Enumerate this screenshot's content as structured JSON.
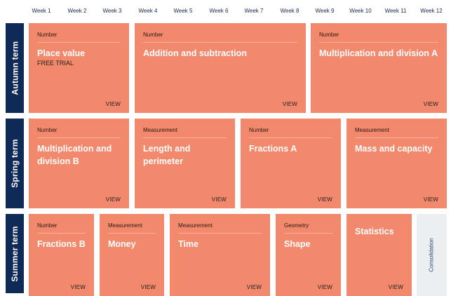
{
  "weeks": [
    "Week 1",
    "Week 2",
    "Week 3",
    "Week 4",
    "Week 5",
    "Week 6",
    "Week 7",
    "Week 8",
    "Week 9",
    "Week 10",
    "Week 11",
    "Week 12"
  ],
  "terms": {
    "autumn": "Autumn term",
    "spring": "Spring term",
    "summer": "Summer term"
  },
  "autumn": [
    {
      "category": "Number",
      "title": "Place value",
      "sub": "FREE TRIAL",
      "view": "VIEW"
    },
    {
      "category": "Number",
      "title": "Addition and subtraction",
      "view": "VIEW"
    },
    {
      "category": "Number",
      "title": "Multiplication and division A",
      "view": "VIEW"
    }
  ],
  "spring": [
    {
      "category": "Number",
      "title": "Multiplication and division B",
      "view": "VIEW"
    },
    {
      "category": "Measurement",
      "title": "Length and perimeter",
      "view": "VIEW"
    },
    {
      "category": "Number",
      "title": "Fractions A",
      "view": "VIEW"
    },
    {
      "category": "Measurement",
      "title": "Mass and capacity",
      "view": "VIEW"
    }
  ],
  "summer": [
    {
      "category": "Number",
      "title": "Fractions B",
      "view": "VIEW"
    },
    {
      "category": "Measurement",
      "title": "Money",
      "view": "VIEW"
    },
    {
      "category": "Measurement",
      "title": "Time",
      "view": "VIEW"
    },
    {
      "category": "Geometry",
      "title": "Shape",
      "view": "VIEW"
    },
    {
      "title": "Statistics",
      "view": "VIEW"
    }
  ],
  "consolidation": "Consolidation",
  "colors": {
    "card": "#f2896c",
    "term_label": "#0f2a56",
    "consolidation": "#eceff1"
  }
}
